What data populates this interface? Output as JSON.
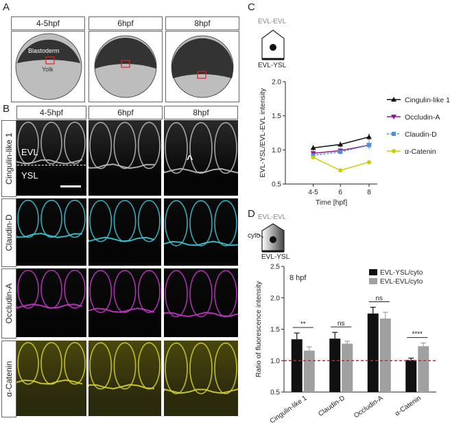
{
  "panel_A": {
    "letter": "A",
    "stages": [
      "4-5hpf",
      "6hpf",
      "8hpf"
    ],
    "blastoderm_label": "Blastoderm",
    "yolk_label": "Yolk"
  },
  "panel_B": {
    "letter": "B",
    "stages": [
      "4-5hpf",
      "6hpf",
      "8hpf"
    ],
    "rows": [
      "Cingulin-like 1",
      "Claudin-D",
      "Occludin-A",
      "α-Catenin"
    ],
    "evl_label": "EVL",
    "ysl_label": "YSL",
    "arrowhead": "^",
    "colors": {
      "row1": "#bdbdbd",
      "row2": "#3ec8d8",
      "row3": "#c53ac7",
      "row4": "#d8d430"
    }
  },
  "panel_C": {
    "letter": "C",
    "schematic_top": "EVL-EVL",
    "schematic_bottom": "EVL-YSL"
  },
  "panel_D": {
    "letter": "D",
    "schematic_top": "EVL-EVL",
    "schematic_cyto": "cyto",
    "schematic_bottom": "EVL-YSL",
    "annotation": "8 hpf",
    "significance": [
      "**",
      "ns",
      "ns",
      "****"
    ]
  },
  "chart_data": [
    {
      "type": "line",
      "panel": "C",
      "x": [
        "4-5",
        "6",
        "8"
      ],
      "xlabel": "Time [hpf]",
      "ylabel": "EVL-YSL/EVL-EVL intensity",
      "ylim": [
        0.5,
        2.0
      ],
      "yticks": [
        "0.5",
        "1.0",
        "1.5",
        "2.0"
      ],
      "legend_position": "right",
      "series": [
        {
          "name": "Cingulin-like 1",
          "values": [
            1.03,
            1.08,
            1.19
          ],
          "errors": [
            0.04,
            0.04,
            0.05
          ],
          "color": "#111111",
          "marker": "triangle-up"
        },
        {
          "name": "Occludin-A",
          "values": [
            0.95,
            0.99,
            1.07
          ],
          "errors": [
            0.03,
            0.03,
            0.05
          ],
          "color": "#8b1a8b",
          "marker": "triangle-down"
        },
        {
          "name": "Claudin-D",
          "values": [
            0.92,
            0.97,
            1.07
          ],
          "errors": [
            0.03,
            0.03,
            0.06
          ],
          "color": "#4a90d9",
          "marker": "square"
        },
        {
          "name": "α-Catenin",
          "values": [
            0.89,
            0.7,
            0.82
          ],
          "errors": [
            0.01,
            0.01,
            0.01
          ],
          "color": "#cccc00",
          "marker": "circle"
        }
      ]
    },
    {
      "type": "bar",
      "panel": "D",
      "categories": [
        "Cingulin-like 1",
        "Claudin-D",
        "Occludin-A",
        "α-Catenin"
      ],
      "ylabel": "Ratio of fluorescence intensity",
      "ylim": [
        0.5,
        2.5
      ],
      "yticks": [
        "0.5",
        "1.0",
        "1.5",
        "2.0",
        "2.5"
      ],
      "reference_line": 1.0,
      "legend_position": "top-right",
      "series": [
        {
          "name": "EVL-YSL/cyto",
          "values": [
            1.34,
            1.35,
            1.75,
            1.01
          ],
          "errors": [
            0.1,
            0.1,
            0.1,
            0.03
          ],
          "color": "#111111"
        },
        {
          "name": "EVL-EVL/cyto",
          "values": [
            1.16,
            1.27,
            1.67,
            1.23
          ],
          "errors": [
            0.06,
            0.04,
            0.1,
            0.05
          ],
          "color": "#a0a0a0"
        }
      ]
    }
  ]
}
